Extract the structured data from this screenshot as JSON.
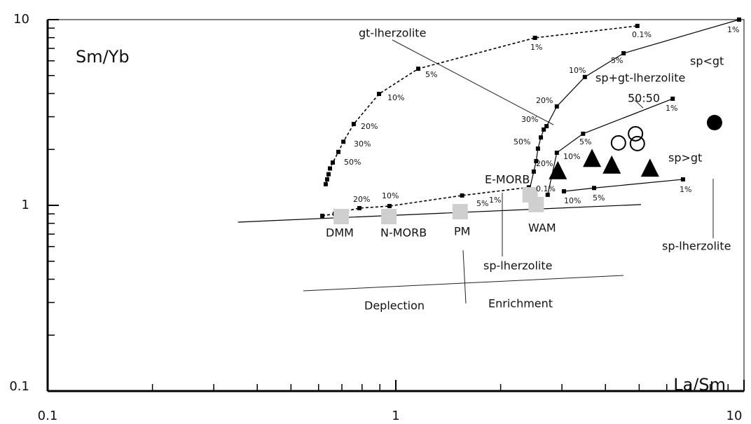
{
  "chart_data": {
    "type": "scatter",
    "xlim": [
      0.1,
      10
    ],
    "ylim": [
      0.1,
      10
    ],
    "xticks": [
      0.1,
      1,
      10
    ],
    "yticks": [
      0.1,
      1,
      10
    ],
    "log_x": true,
    "log_y": true,
    "grid": false,
    "series": [
      {
        "x": [
          0.629,
          0.635,
          0.641,
          0.647,
          0.659,
          0.684,
          0.707,
          0.757,
          0.895,
          1.16,
          2.51,
          4.94
        ],
        "y": [
          1.3,
          1.38,
          1.47,
          1.58,
          1.7,
          1.94,
          2.2,
          2.74,
          3.98,
          5.44,
          7.98,
          9.25
        ],
        "line": "dashed",
        "marker": "square",
        "color": "#000000"
      },
      {
        "x": [
          2.41,
          2.49,
          2.53,
          2.56,
          2.61,
          2.66,
          2.71,
          2.9,
          3.49,
          4.51,
          9.68
        ],
        "y": [
          1.17,
          1.52,
          1.73,
          2.02,
          2.32,
          2.56,
          2.67,
          3.41,
          4.91,
          6.59,
          10
        ],
        "line": "solid",
        "marker": "square",
        "color": "#000000"
      },
      {
        "x": [
          2.73,
          2.9,
          3.45,
          6.24
        ],
        "y": [
          1.14,
          1.92,
          2.43,
          3.75
        ],
        "line": "solid",
        "marker": "square",
        "color": "#000000"
      },
      {
        "x": [
          3.04,
          3.71,
          6.68
        ],
        "y": [
          1.19,
          1.24,
          1.38
        ],
        "line": "solid",
        "marker": "square",
        "color": "#000000"
      },
      {
        "x": [
          0.615,
          0.668,
          0.707,
          0.786,
          0.959,
          1.55,
          2.41
        ],
        "y": [
          0.878,
          0.901,
          0.925,
          0.966,
          0.991,
          1.13,
          1.25
        ],
        "line": "dashed",
        "marker": "square",
        "color": "#000000"
      },
      {
        "x": [
          0.352,
          5.06
        ],
        "y": [
          0.812,
          1.01
        ],
        "line": "solid",
        "marker": null,
        "color": "#000000"
      },
      {
        "x": [
          0.697,
          0.955,
          1.53,
          2.43,
          2.53
        ],
        "y": [
          0.87,
          0.87,
          0.925,
          1.14,
          1.01
        ],
        "line": null,
        "marker": "big-square",
        "color": "#cfcfcf"
      },
      {
        "x": [
          2.92,
          3.66,
          4.17,
          5.37
        ],
        "y": [
          1.52,
          1.77,
          1.63,
          1.57
        ],
        "line": null,
        "marker": "triangle",
        "color": "#000000"
      },
      {
        "x": [
          4.36,
          4.88,
          4.94
        ],
        "y": [
          2.17,
          2.43,
          2.15
        ],
        "line": null,
        "marker": "open-circle",
        "color": "#000000"
      },
      {
        "x": [
          8.23
        ],
        "y": [
          2.79
        ],
        "line": null,
        "marker": "circle",
        "color": "#000000"
      }
    ],
    "y_label": "Sm/Yb",
    "x_label": "La/Sm",
    "annotations": [
      "gt-lherzolite",
      "sp<gt",
      "sp+gt-lherzolite",
      "50:50",
      "sp>gt",
      "E-MORB",
      "DMM",
      "N-MORB",
      "PM",
      "WAM",
      "sp-lherzolite",
      "sp-lherzolite",
      "Deplection",
      "Enrichment"
    ],
    "percent_labels": [
      "0.1%",
      "1%",
      "5%",
      "10%",
      "20%",
      "30%",
      "50%",
      "1%",
      "5%",
      "10%",
      "20%",
      "30%",
      "50%",
      "1%",
      "5%",
      "10%",
      "20%",
      "0.1%",
      "1%",
      "5%",
      "10%",
      "5%",
      "1%",
      "20%",
      "10%"
    ]
  }
}
